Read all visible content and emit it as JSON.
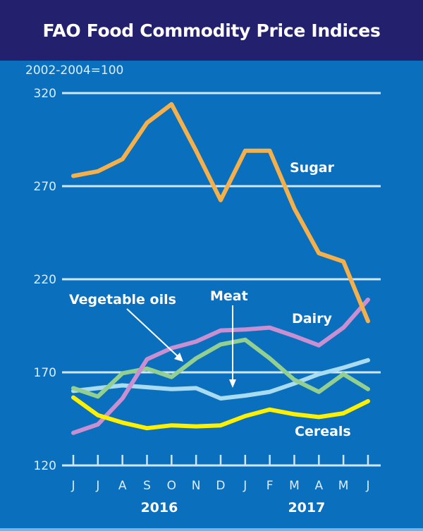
{
  "chart_data": {
    "type": "line",
    "title": "FAO Food Commodity Price Indices",
    "ylabel": "2002-2004=100",
    "xlabel": "",
    "ylim": [
      120,
      320
    ],
    "yticks": [
      120,
      170,
      220,
      270,
      320
    ],
    "grid": true,
    "categories": [
      "J",
      "J",
      "A",
      "S",
      "O",
      "N",
      "D",
      "J",
      "F",
      "M",
      "A",
      "M",
      "J"
    ],
    "year_labels": [
      {
        "label": "2016",
        "center_index": 3.5
      },
      {
        "label": "2017",
        "center_index": 9.5
      }
    ],
    "series": [
      {
        "name": "Sugar",
        "color": "#f5b04a",
        "values": [
          275.5,
          278,
          284.5,
          304,
          314,
          289,
          262.5,
          289,
          289,
          258,
          234,
          229.5,
          197.5
        ]
      },
      {
        "name": "Dairy",
        "color": "#c98fd0",
        "values": [
          137.5,
          142,
          156,
          177,
          183,
          186.5,
          192.5,
          193,
          194,
          189.5,
          184.5,
          194,
          209
        ]
      },
      {
        "name": "Vegetable oils",
        "color": "#93cf8f",
        "values": [
          161.5,
          157,
          169.5,
          172,
          167.5,
          177.5,
          185,
          187.5,
          177.5,
          166,
          159.5,
          169,
          161
        ]
      },
      {
        "name": "Meat",
        "color": "#a9dcf0",
        "values": [
          160,
          161.5,
          163,
          162,
          161,
          161.5,
          156,
          157.5,
          159.5,
          164,
          169,
          172.5,
          176.5
        ]
      },
      {
        "name": "Cereals",
        "color": "#fff000",
        "values": [
          156.5,
          147,
          143,
          140,
          141.5,
          141,
          141.5,
          146.5,
          150,
          147.5,
          146,
          148,
          154.5
        ]
      }
    ],
    "annotations": [
      {
        "text": "Sugar",
        "near": "Sugar"
      },
      {
        "text": "Dairy",
        "near": "Dairy"
      },
      {
        "text": "Vegetable oils",
        "near": "Vegetable oils",
        "arrow": true
      },
      {
        "text": "Meat",
        "near": "Meat",
        "arrow": true
      },
      {
        "text": "Cereals",
        "near": "Cereals"
      }
    ],
    "legend": "none"
  }
}
